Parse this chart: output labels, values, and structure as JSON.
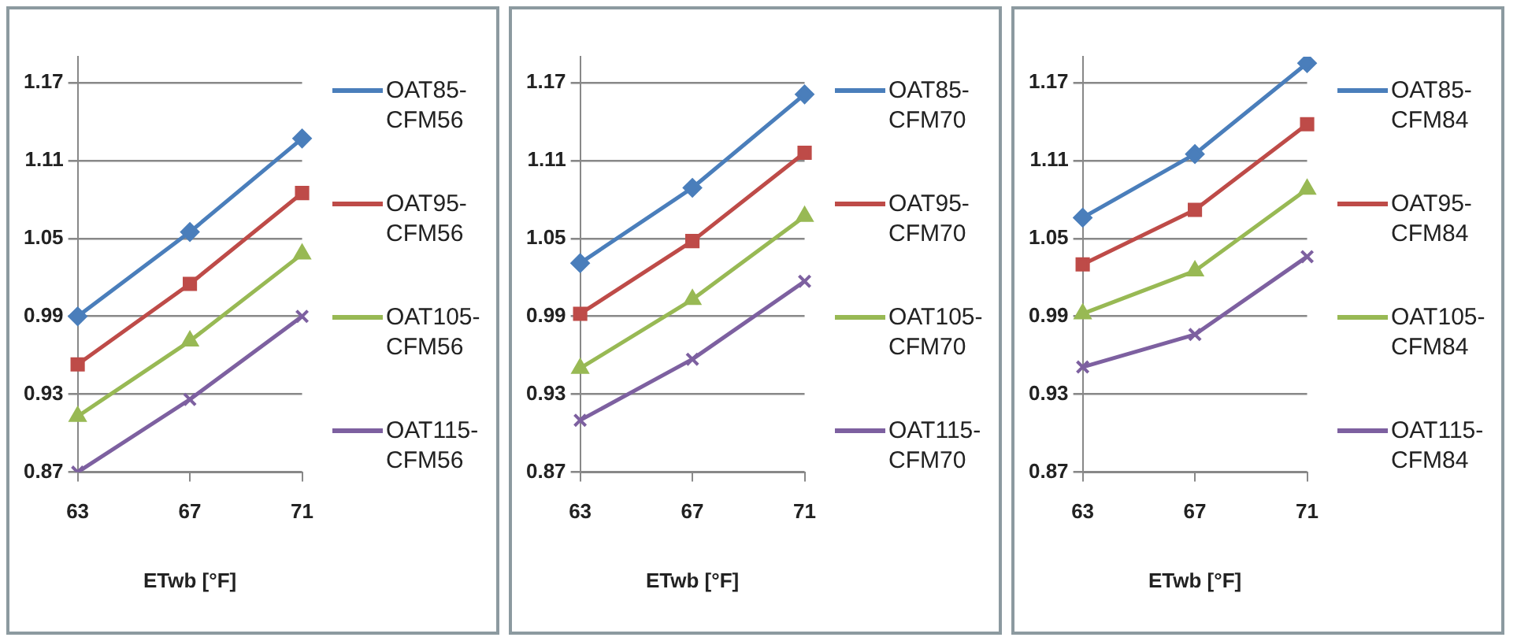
{
  "chart_data": [
    {
      "type": "line",
      "xlabel": "ETwb [°F]",
      "categories": [
        "63",
        "67",
        "71"
      ],
      "ylim": [
        0.87,
        1.19
      ],
      "yticks": [
        0.87,
        0.93,
        0.99,
        1.05,
        1.11,
        1.17
      ],
      "grid": "y",
      "legend": "right",
      "series": [
        {
          "name": "OAT85-CFM56",
          "color": "#4a7ebb",
          "marker": "diamond",
          "values": [
            0.99,
            1.055,
            1.127
          ]
        },
        {
          "name": "OAT95-CFM56",
          "color": "#be4b48",
          "marker": "square",
          "values": [
            0.953,
            1.015,
            1.085
          ]
        },
        {
          "name": "OAT105-CFM56",
          "color": "#98b954",
          "marker": "triangle",
          "values": [
            0.913,
            0.971,
            1.038
          ]
        },
        {
          "name": "OAT115-CFM56",
          "color": "#7d60a0",
          "marker": "cross",
          "values": [
            0.87,
            0.926,
            0.99
          ]
        }
      ]
    },
    {
      "type": "line",
      "xlabel": "ETwb [°F]",
      "categories": [
        "63",
        "67",
        "71"
      ],
      "ylim": [
        0.87,
        1.19
      ],
      "yticks": [
        0.87,
        0.93,
        0.99,
        1.05,
        1.11,
        1.17
      ],
      "grid": "y",
      "legend": "right",
      "series": [
        {
          "name": "OAT85-CFM70",
          "color": "#4a7ebb",
          "marker": "diamond",
          "values": [
            1.031,
            1.089,
            1.161
          ]
        },
        {
          "name": "OAT95-CFM70",
          "color": "#be4b48",
          "marker": "square",
          "values": [
            0.992,
            1.048,
            1.116
          ]
        },
        {
          "name": "OAT105-CFM70",
          "color": "#98b954",
          "marker": "triangle",
          "values": [
            0.95,
            1.003,
            1.067
          ]
        },
        {
          "name": "OAT115-CFM70",
          "color": "#7d60a0",
          "marker": "cross",
          "values": [
            0.91,
            0.957,
            1.017
          ]
        }
      ]
    },
    {
      "type": "line",
      "xlabel": "ETwb [°F]",
      "categories": [
        "63",
        "67",
        "71"
      ],
      "ylim": [
        0.87,
        1.19
      ],
      "yticks": [
        0.87,
        0.93,
        0.99,
        1.05,
        1.11,
        1.17
      ],
      "grid": "y",
      "legend": "right",
      "series": [
        {
          "name": "OAT85-CFM84",
          "color": "#4a7ebb",
          "marker": "diamond",
          "values": [
            1.066,
            1.115,
            1.185
          ]
        },
        {
          "name": "OAT95-CFM84",
          "color": "#be4b48",
          "marker": "square",
          "values": [
            1.03,
            1.072,
            1.138
          ]
        },
        {
          "name": "OAT105-CFM84",
          "color": "#98b954",
          "marker": "triangle",
          "values": [
            0.992,
            1.025,
            1.088
          ]
        },
        {
          "name": "OAT115-CFM84",
          "color": "#7d60a0",
          "marker": "cross",
          "values": [
            0.951,
            0.976,
            1.036
          ]
        }
      ]
    }
  ]
}
